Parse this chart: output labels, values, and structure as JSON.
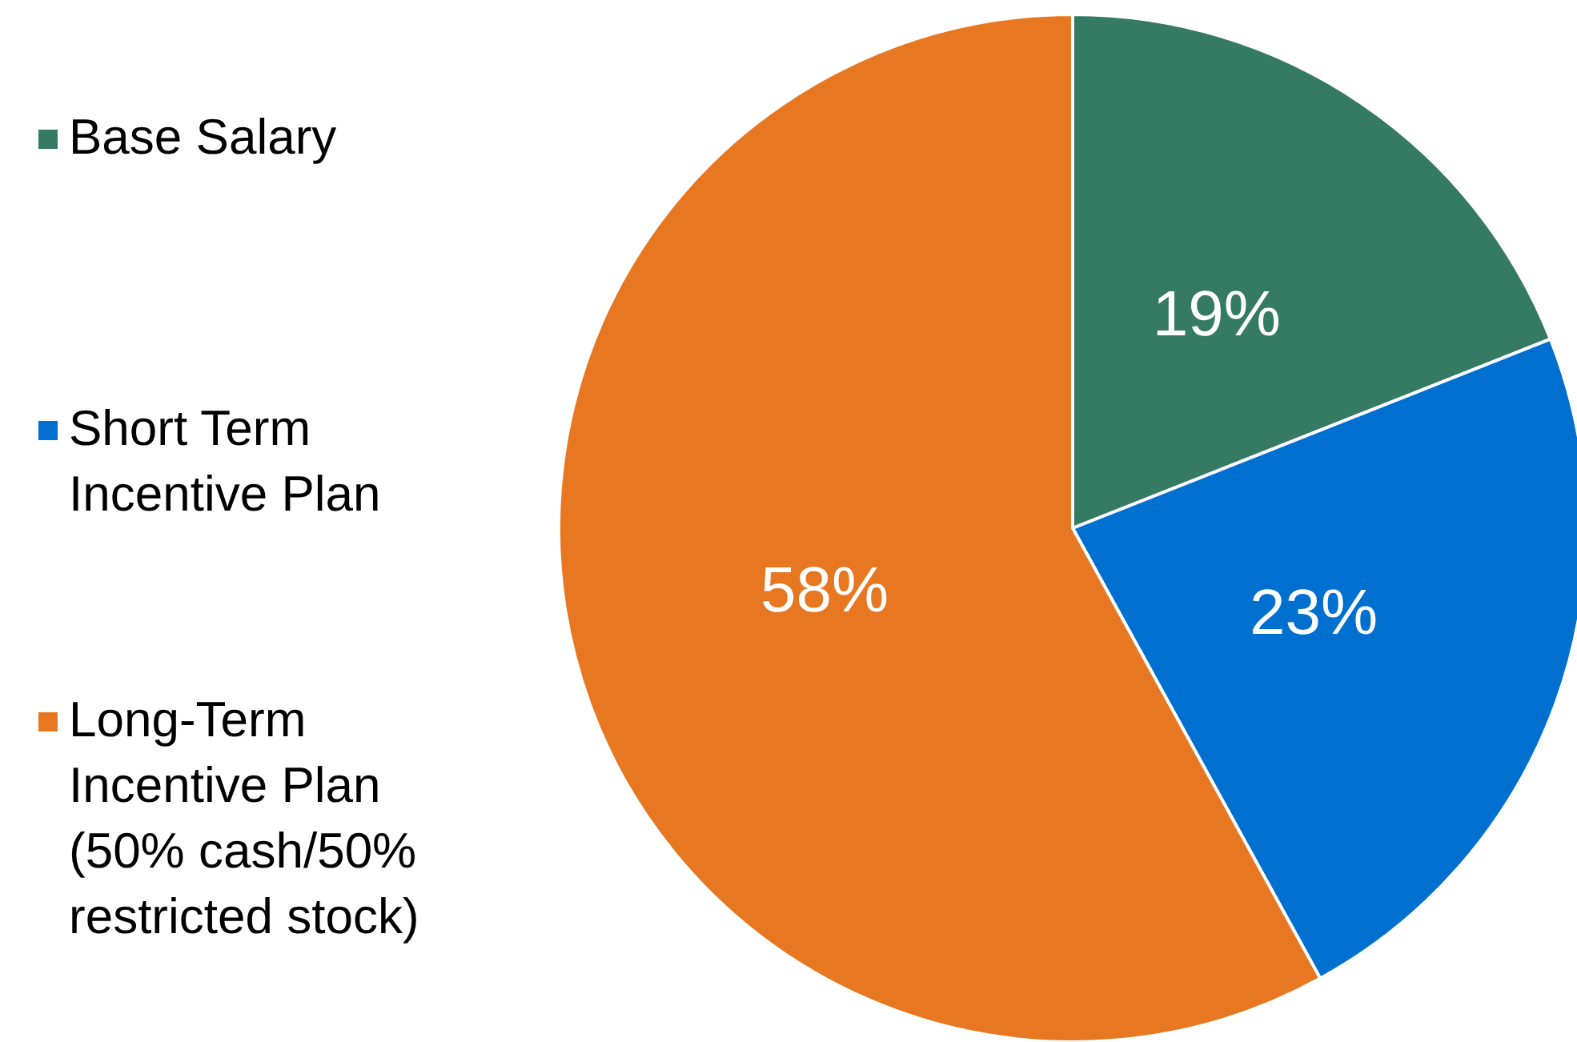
{
  "chart_data": {
    "type": "pie",
    "categories": [
      "Base Salary",
      "Short Term Incentive Plan",
      "Long-Term Incentive Plan (50% cash/50% restricted stock)"
    ],
    "values": [
      19,
      23,
      58
    ],
    "colors": [
      "#357a62",
      "#0070d0",
      "#e87722"
    ],
    "value_labels": [
      "19%",
      "23%",
      "58%"
    ],
    "legend": "left"
  }
}
